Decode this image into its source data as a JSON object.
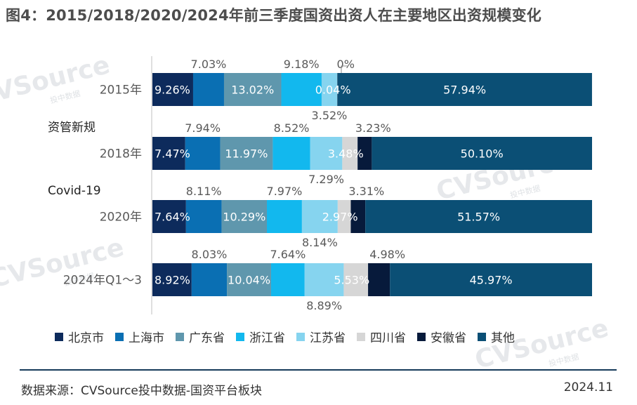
{
  "title": "图4：2015/2018/2020/2024年前三季度国资出资人在主要地区出资规模变化",
  "watermark": {
    "brand": "CVSource",
    "sub": "投中数据"
  },
  "source": "数据来源：CVSource投中数据-国资平台板块",
  "date": "2024.11",
  "colors": {
    "北京市": "#0d2b5c",
    "上海市": "#0a6fb3",
    "广东省": "#5f97ad",
    "浙江省": "#12b8ee",
    "江苏省": "#86d4ef",
    "四川省": "#d6d6d6",
    "安徽省": "#071a3b",
    "其他": "#0b4f75"
  },
  "chart_data": {
    "type": "bar",
    "orientation": "horizontal",
    "stacked": true,
    "percent": true,
    "categories": [
      "2015年",
      "2018年",
      "2020年",
      "2024年Q1～3"
    ],
    "category_notes": [
      "",
      "资管新规",
      "Covid-19",
      ""
    ],
    "series": [
      {
        "name": "北京市",
        "values": [
          9.26,
          7.47,
          7.64,
          8.92
        ],
        "labels": [
          "9.26%",
          "7.47%",
          "7.64%",
          "8.92%"
        ]
      },
      {
        "name": "上海市",
        "values": [
          7.03,
          7.94,
          8.11,
          8.03
        ],
        "labels": [
          "7.03%",
          "7.94%",
          "8.11%",
          "8.03%"
        ]
      },
      {
        "name": "广东省",
        "values": [
          13.02,
          11.97,
          10.29,
          10.04
        ],
        "labels": [
          "13.02%",
          "11.97%",
          "10.29%",
          "10.04%"
        ]
      },
      {
        "name": "浙江省",
        "values": [
          9.18,
          8.52,
          7.97,
          7.64
        ],
        "labels": [
          "9.18%",
          "8.52%",
          "7.97%",
          "7.64%"
        ]
      },
      {
        "name": "江苏省",
        "values": [
          3.52,
          7.29,
          8.14,
          8.89
        ],
        "labels": [
          "3.52%",
          "7.29%",
          "8.14%",
          "8.89%"
        ]
      },
      {
        "name": "四川省",
        "values": [
          0.04,
          3.48,
          2.97,
          5.53
        ],
        "labels": [
          "0.04%",
          "3.48%",
          "2.97%",
          "5.53%"
        ]
      },
      {
        "name": "安徽省",
        "values": [
          0,
          3.23,
          3.31,
          4.98
        ],
        "labels": [
          "0%",
          "3.23%",
          "3.31%",
          "4.98%"
        ]
      },
      {
        "name": "其他",
        "values": [
          57.94,
          50.1,
          51.57,
          45.97
        ],
        "labels": [
          "57.94%",
          "50.10%",
          "51.57%",
          "45.97%"
        ]
      }
    ],
    "xlim": [
      0,
      100
    ],
    "legend_position": "bottom"
  }
}
